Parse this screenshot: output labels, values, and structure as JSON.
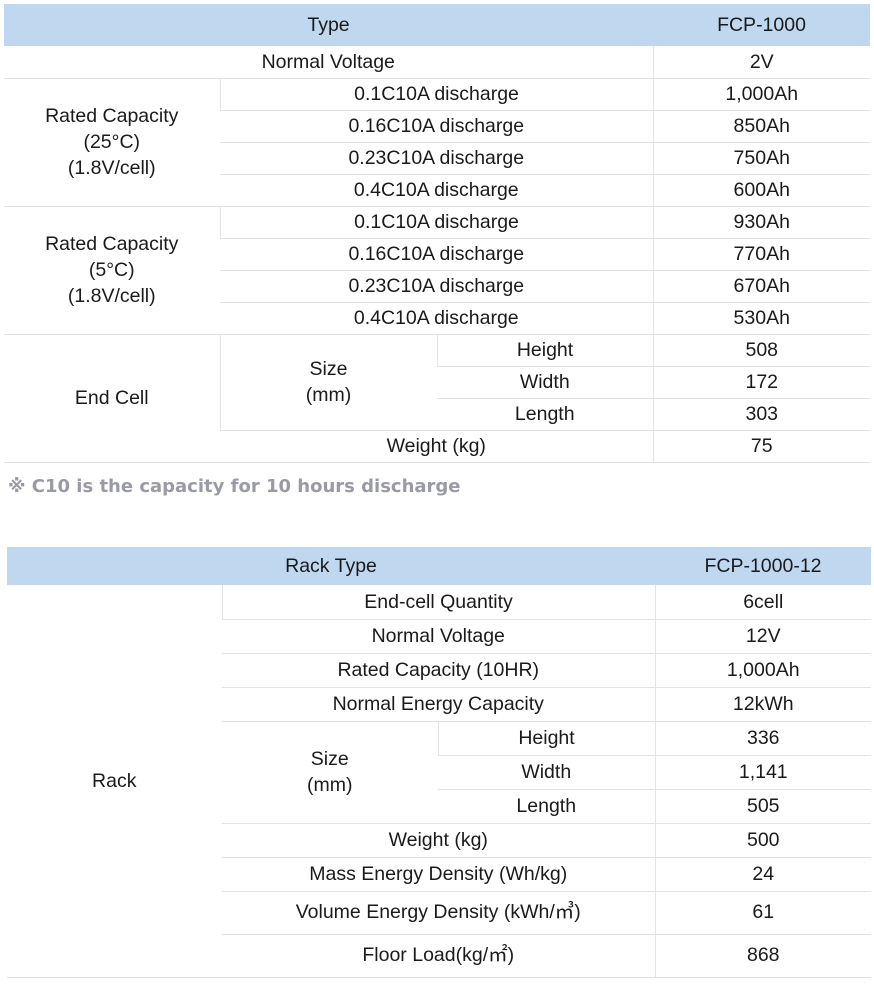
{
  "table1": {
    "header": {
      "label": "Type",
      "value": "FCP-1000"
    },
    "normal_voltage": {
      "label": "Normal Voltage",
      "value": "2V"
    },
    "rated_25": {
      "group_label": [
        "Rated Capacity",
        "(25°C)",
        "(1.8V/cell)"
      ],
      "rows": [
        {
          "label": "0.1C10A discharge",
          "value": "1,000Ah"
        },
        {
          "label": "0.16C10A discharge",
          "value": "850Ah"
        },
        {
          "label": "0.23C10A discharge",
          "value": "750Ah"
        },
        {
          "label": "0.4C10A discharge",
          "value": "600Ah"
        }
      ]
    },
    "rated_5": {
      "group_label": [
        "Rated Capacity",
        "(5°C)",
        "(1.8V/cell)"
      ],
      "rows": [
        {
          "label": "0.1C10A discharge",
          "value": "930Ah"
        },
        {
          "label": "0.16C10A discharge",
          "value": "770Ah"
        },
        {
          "label": "0.23C10A discharge",
          "value": "670Ah"
        },
        {
          "label": "0.4C10A discharge",
          "value": "530Ah"
        }
      ]
    },
    "end_cell": {
      "label": "End Cell",
      "size_label": [
        "Size",
        "(mm)"
      ],
      "size_rows": [
        {
          "label": "Height",
          "value": "508"
        },
        {
          "label": "Width",
          "value": "172"
        },
        {
          "label": "Length",
          "value": "303"
        }
      ],
      "weight": {
        "label": "Weight (kg)",
        "value": "75"
      }
    }
  },
  "note": "※ C10 is the capacity for 10 hours discharge",
  "table2": {
    "header": {
      "label": "Rack Type",
      "value": "FCP-1000-12"
    },
    "group_label": "Rack",
    "rows_top": [
      {
        "label": "End-cell Quantity",
        "value": "6cell"
      },
      {
        "label": "Normal Voltage",
        "value": "12V"
      },
      {
        "label": "Rated Capacity (10HR)",
        "value": "1,000Ah"
      },
      {
        "label": "Normal Energy Capacity",
        "value": "12kWh"
      }
    ],
    "size_label": [
      "Size",
      "(mm)"
    ],
    "size_rows": [
      {
        "label": "Height",
        "value": "336"
      },
      {
        "label": "Width",
        "value": "1,141"
      },
      {
        "label": "Length",
        "value": "505"
      }
    ],
    "rows_bottom": [
      {
        "label": "Weight (kg)",
        "value": "500"
      },
      {
        "label": "Mass Energy Density (Wh/kg)",
        "value": "24"
      },
      {
        "label": "Volume Energy Density (kWh/㎥)",
        "value": "61"
      },
      {
        "label": "Floor Load(kg/㎡)",
        "value": "868"
      }
    ]
  }
}
